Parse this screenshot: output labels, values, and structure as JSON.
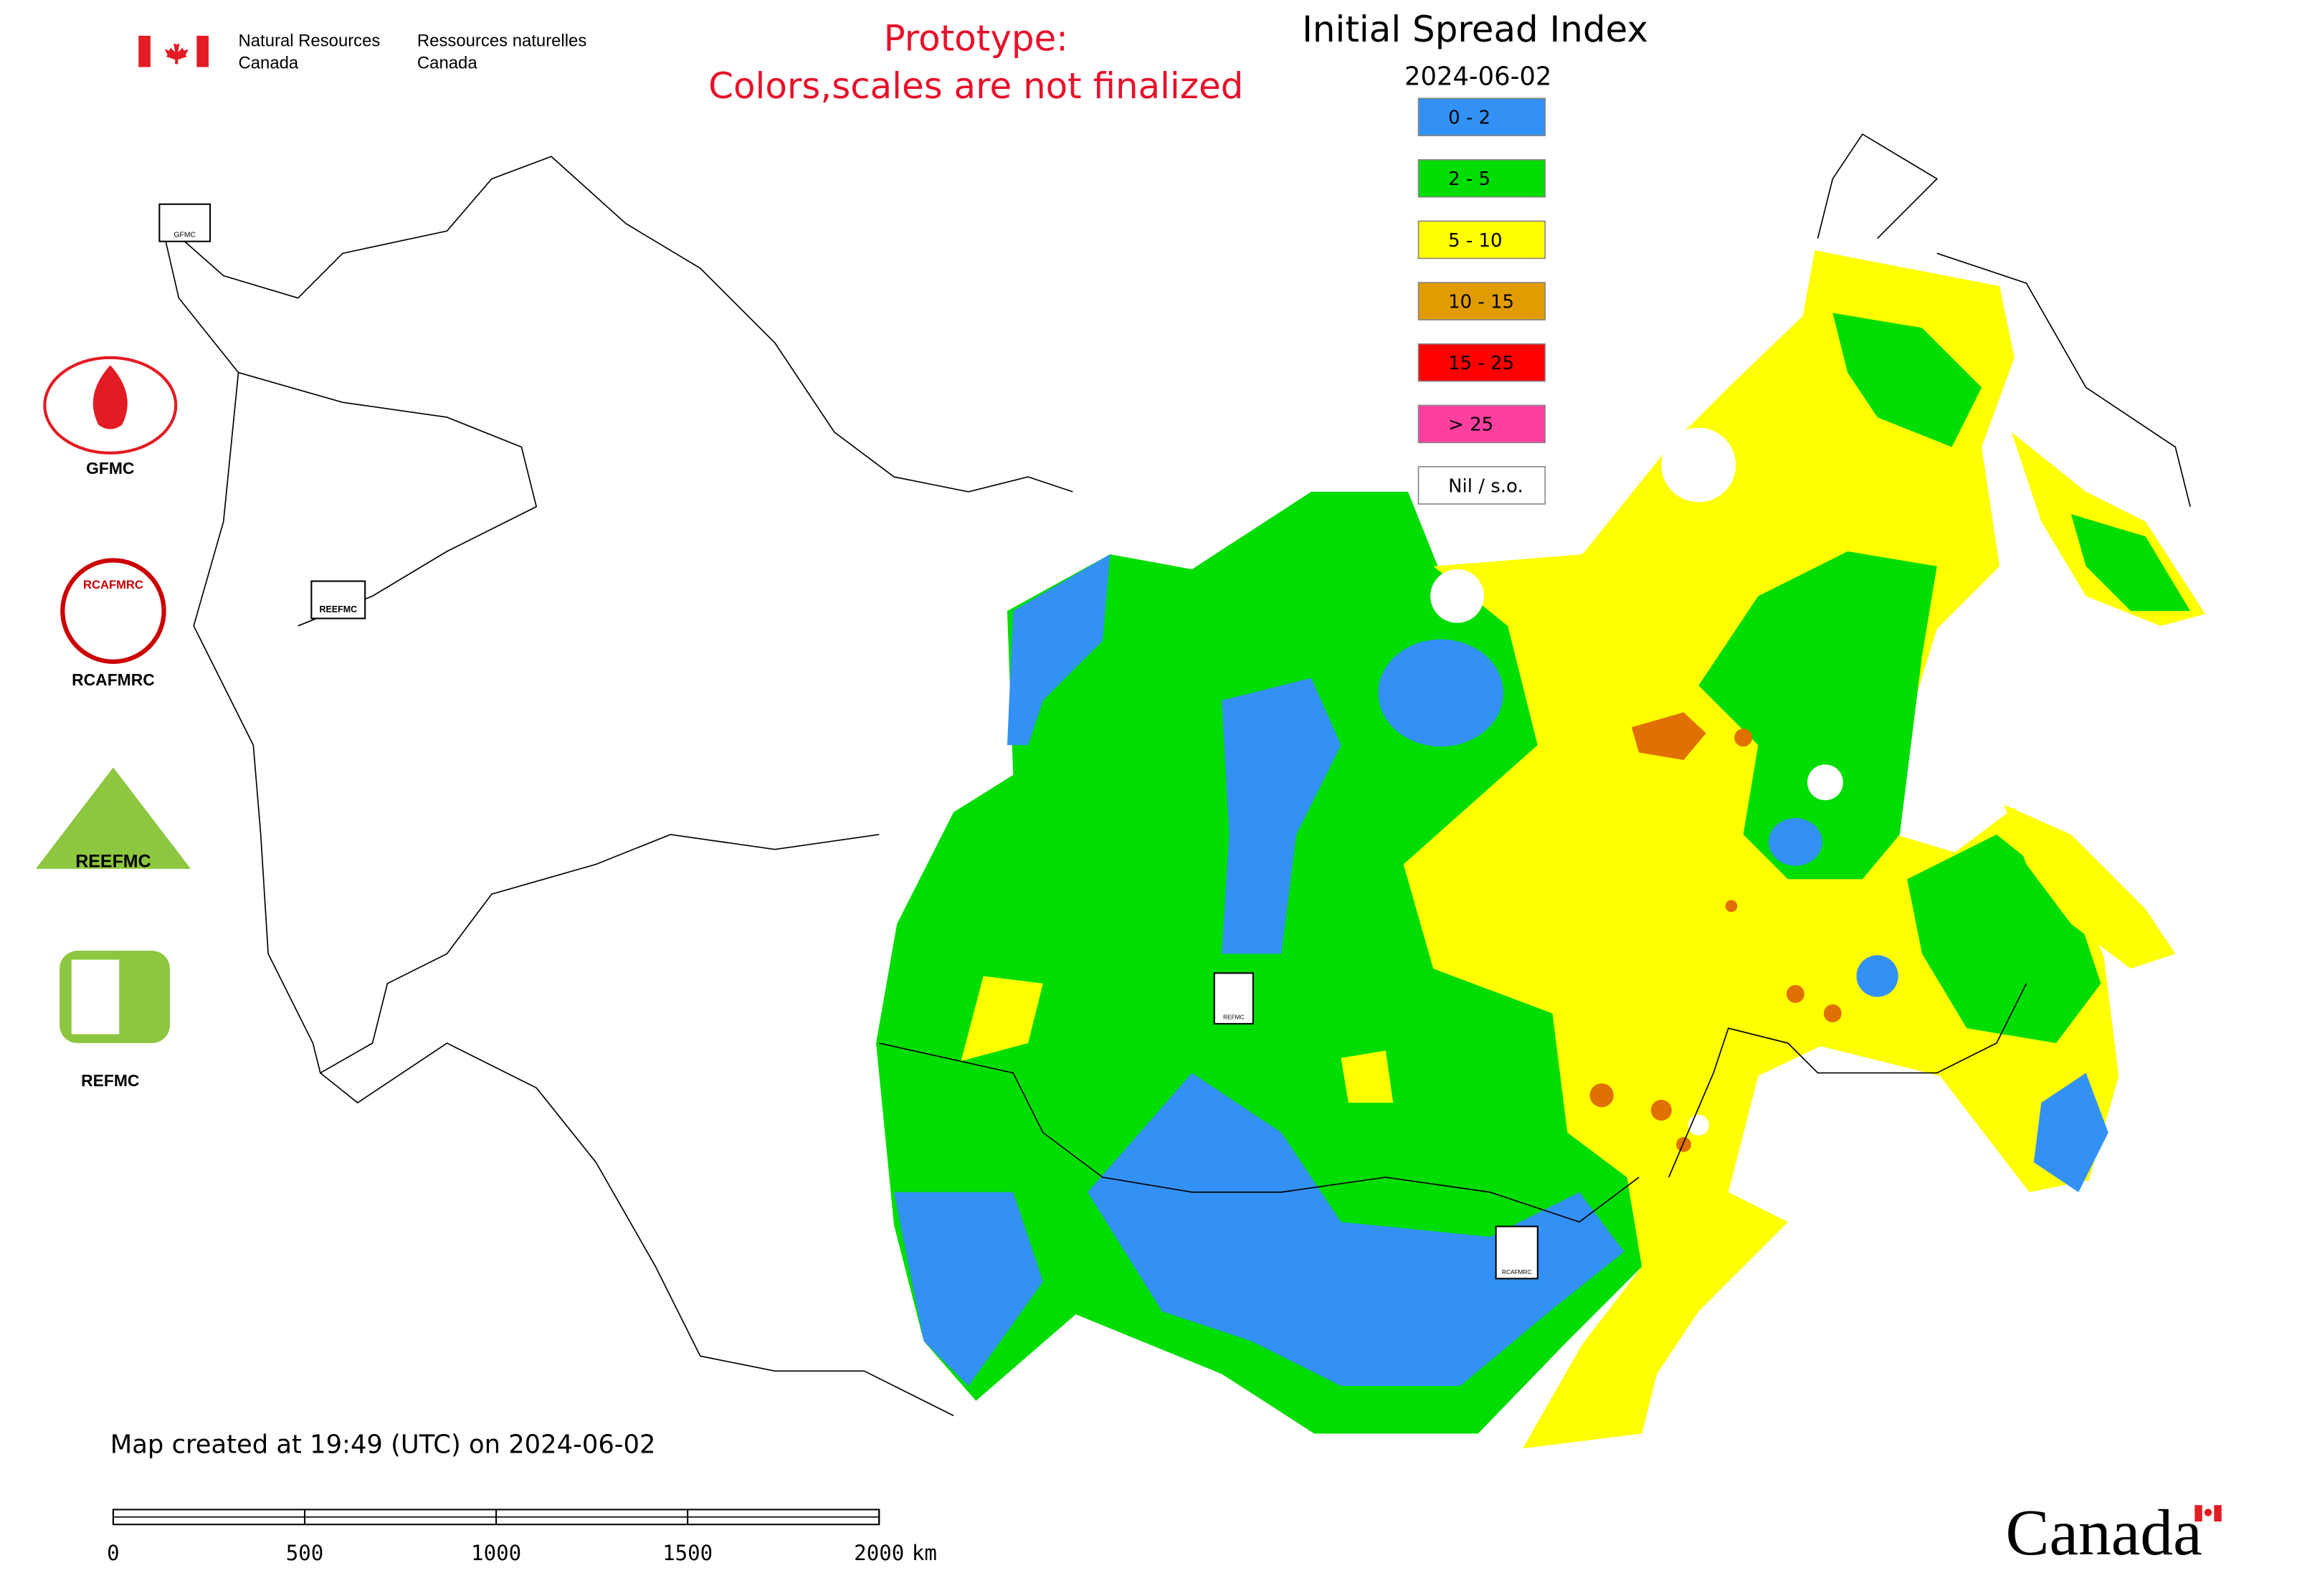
{
  "header": {
    "agency_en": [
      "Natural Resources",
      "Canada"
    ],
    "agency_fr": [
      "Ressources naturelles",
      "Canada"
    ]
  },
  "notice": [
    "Prototype:",
    "Colors,scales are not finalized"
  ],
  "map": {
    "title": "Initial Spread Index",
    "date": "2024-06-02",
    "legend": [
      {
        "label": "0 - 2",
        "color": "#3391f5"
      },
      {
        "label": "2 - 5",
        "color": "#00dd00"
      },
      {
        "label": "5 - 10",
        "color": "#ffff00"
      },
      {
        "label": "10 - 15",
        "color": "#e09c00"
      },
      {
        "label": "15 - 25",
        "color": "#ff0000"
      },
      {
        "label": "> 25",
        "color": "#ff3fa0"
      },
      {
        "label": "Nil / s.o.",
        "color": "#ffffff"
      }
    ],
    "markers": [
      "GFMC",
      "REEFMC",
      "REFMC",
      "RCAFMRC"
    ]
  },
  "partners": [
    "GFMC",
    "RCAFMRC",
    "REEFMC",
    "REFMC"
  ],
  "footer": {
    "created": "Map created at 19:49 (UTC) on 2024-06-02",
    "scale_ticks": [
      0,
      500,
      1000,
      1500,
      2000
    ],
    "scale_unit": "km",
    "wordmark": "Canada"
  }
}
